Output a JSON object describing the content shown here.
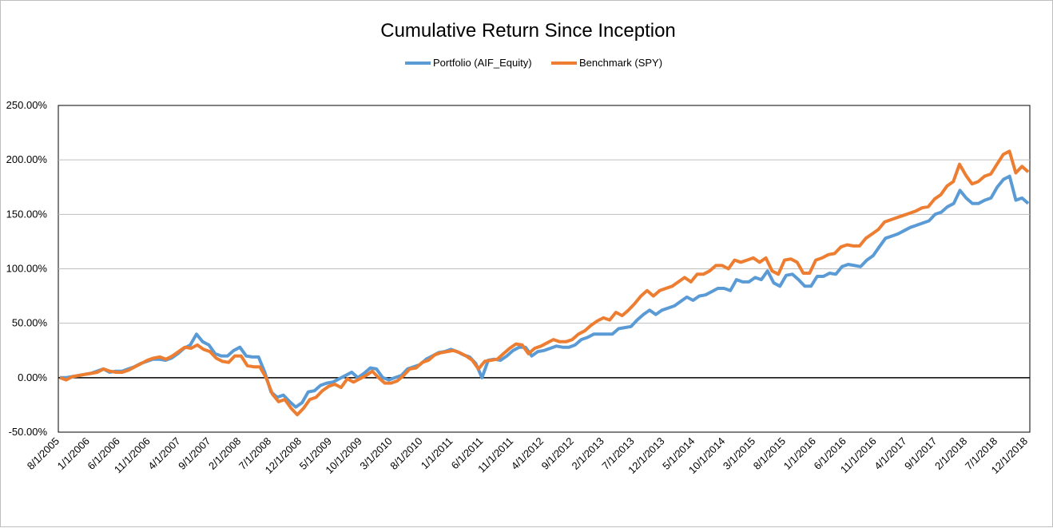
{
  "chart_data": {
    "type": "line",
    "title": "Cumulative Return Since Inception",
    "xlabel": "",
    "ylabel": "",
    "ylim": [
      -50,
      250
    ],
    "y_tick_values": [
      -50,
      0,
      50,
      100,
      150,
      200,
      250
    ],
    "y_tick_labels": [
      "-50.00%",
      "0.00%",
      "50.00%",
      "100.00%",
      "150.00%",
      "200.00%",
      "250.00%"
    ],
    "x_start": "8/1/2005",
    "x_end": "12/1/2018",
    "x_tick_labels": [
      "8/1/2005",
      "1/1/2006",
      "6/1/2006",
      "11/1/2006",
      "4/1/2007",
      "9/1/2007",
      "2/1/2008",
      "7/1/2008",
      "12/1/2008",
      "5/1/2009",
      "10/1/2009",
      "3/1/2010",
      "8/1/2010",
      "1/1/2011",
      "6/1/2011",
      "11/1/2011",
      "4/1/2012",
      "9/1/2012",
      "2/1/2013",
      "7/1/2013",
      "12/1/2013",
      "5/1/2014",
      "10/1/2014",
      "3/1/2015",
      "8/1/2015",
      "1/1/2016",
      "6/1/2016",
      "11/1/2016",
      "4/1/2017",
      "9/1/2017",
      "2/1/2018",
      "7/1/2018",
      "12/1/2018"
    ],
    "legend_position": "top",
    "grid": true,
    "series": [
      {
        "name": "Portfolio (AIF_Equity)",
        "color": "#5b9bd5",
        "values": [
          0,
          0,
          1,
          2,
          3,
          4,
          6,
          8,
          5,
          6,
          6,
          8,
          10,
          13,
          15,
          17,
          17,
          16,
          18,
          22,
          27,
          30,
          40,
          33,
          30,
          22,
          20,
          20,
          25,
          28,
          20,
          19,
          19,
          5,
          -13,
          -18,
          -16,
          -22,
          -27,
          -23,
          -13,
          -12,
          -7,
          -5,
          -4,
          -1,
          2,
          5,
          0,
          4,
          9,
          8,
          0,
          -2,
          0,
          2,
          8,
          10,
          12,
          17,
          20,
          23,
          24,
          26,
          24,
          21,
          19,
          13,
          0,
          16,
          17,
          16,
          20,
          25,
          28,
          28,
          20,
          24,
          25,
          27,
          29,
          28,
          28,
          30,
          35,
          37,
          40,
          40,
          40,
          40,
          45,
          46,
          47,
          53,
          58,
          62,
          58,
          62,
          64,
          66,
          70,
          74,
          71,
          75,
          76,
          79,
          82,
          82,
          80,
          90,
          88,
          88,
          92,
          90,
          98,
          87,
          84,
          94,
          95,
          90,
          84,
          84,
          93,
          93,
          96,
          95,
          102,
          104,
          103,
          102,
          108,
          112,
          120,
          128,
          130,
          132,
          135,
          138,
          140,
          142,
          144,
          150,
          152,
          157,
          160,
          172,
          165,
          160,
          160,
          163,
          165,
          175,
          182,
          185,
          163,
          165,
          160
        ]
      },
      {
        "name": "Benchmark (SPY)",
        "color": "#ed7d31",
        "values": [
          0,
          -2,
          1,
          2,
          3,
          4,
          5,
          8,
          6,
          5,
          5,
          7,
          10,
          13,
          16,
          18,
          19,
          17,
          20,
          24,
          28,
          27,
          30,
          26,
          24,
          18,
          15,
          14,
          20,
          20,
          11,
          10,
          10,
          0,
          -15,
          -22,
          -20,
          -28,
          -34,
          -28,
          -20,
          -18,
          -12,
          -8,
          -6,
          -9,
          -1,
          -4,
          -1,
          2,
          6,
          0,
          -5,
          -5,
          -3,
          2,
          8,
          9,
          14,
          16,
          21,
          23,
          24,
          25,
          23,
          20,
          16,
          8,
          15,
          16,
          17,
          22,
          27,
          31,
          30,
          22,
          27,
          29,
          32,
          35,
          33,
          33,
          35,
          40,
          43,
          48,
          52,
          55,
          53,
          60,
          57,
          62,
          68,
          75,
          80,
          75,
          80,
          82,
          84,
          88,
          92,
          88,
          95,
          95,
          98,
          103,
          103,
          100,
          108,
          106,
          108,
          110,
          106,
          110,
          98,
          95,
          108,
          109,
          106,
          96,
          96,
          108,
          110,
          113,
          114,
          120,
          122,
          121,
          121,
          128,
          132,
          136,
          143,
          145,
          147,
          149,
          151,
          153,
          156,
          157,
          164,
          168,
          176,
          180,
          196,
          186,
          178,
          180,
          185,
          187,
          196,
          205,
          208,
          188,
          194,
          189
        ]
      }
    ]
  }
}
